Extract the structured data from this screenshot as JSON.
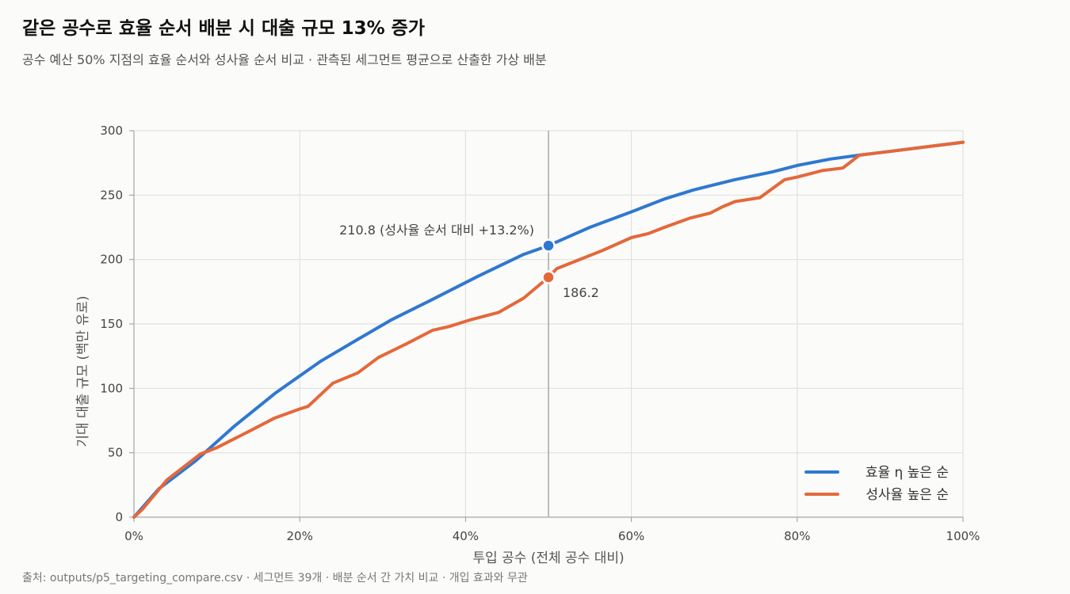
{
  "header": {
    "title": "같은 공수로 효율 순서 배분 시 대출 규모 13% 증가",
    "subtitle": "공수 예산 50% 지점의 효율 순서와 성사율 순서 비교 · 관측된 세그먼트 평균으로 산출한 가상 배분"
  },
  "footer": {
    "source": "출처: outputs/p5_targeting_compare.csv · 세그먼트 39개 · 배분 순서 간 가치 비교 · 개입 효과와 무관"
  },
  "colors": {
    "efficiency": "#2f78d0",
    "success": "#e4683a",
    "grid": "#e1e1de",
    "refline": "#b4b6b0"
  },
  "chart_data": {
    "type": "line",
    "xlabel": "투입 공수 (전체 공수 대비)",
    "ylabel": "기대 대출 규모 (백만 유로)",
    "xlim": [
      0,
      100
    ],
    "ylim": [
      0,
      300
    ],
    "xticks": [
      0,
      20,
      40,
      60,
      80,
      100
    ],
    "xtick_labels": [
      "0%",
      "20%",
      "40%",
      "60%",
      "80%",
      "100%"
    ],
    "yticks": [
      0,
      50,
      100,
      150,
      200,
      250,
      300
    ],
    "ytick_labels": [
      "0",
      "50",
      "100",
      "150",
      "200",
      "250",
      "300"
    ],
    "grid": true,
    "legend_position": "bottom-right",
    "reference_x": 50,
    "series": [
      {
        "name": "효율 η 높은 순",
        "color_key": "efficiency",
        "x": [
          0,
          3,
          7.5,
          12,
          17,
          22.5,
          27,
          31,
          36,
          41.5,
          47,
          50,
          55,
          60,
          64,
          67.5,
          72.5,
          77,
          80,
          84,
          87.5,
          90,
          95,
          100
        ],
        "y": [
          0,
          22,
          44,
          70,
          96,
          121,
          138,
          153,
          169,
          187,
          204,
          210.8,
          225,
          237,
          247,
          254,
          262,
          268,
          273,
          278,
          281,
          283,
          287,
          291
        ]
      },
      {
        "name": "성사율 높은 순",
        "color_key": "success",
        "x": [
          0,
          1,
          4,
          8,
          10,
          14,
          17,
          20,
          21,
          24,
          27,
          29.5,
          33,
          36,
          38,
          40.5,
          44,
          47,
          50,
          51,
          53,
          56.5,
          60,
          62,
          64,
          67,
          69.5,
          71,
          72.5,
          75.5,
          78.5,
          80,
          83,
          85.5,
          87.5,
          90,
          95,
          100
        ],
        "y": [
          0,
          6,
          29,
          49,
          54,
          67,
          77,
          84,
          86,
          104,
          112,
          124,
          135,
          145,
          148,
          153,
          159,
          170,
          186.2,
          193,
          198,
          207,
          217,
          220,
          225,
          232,
          236,
          241,
          245,
          248,
          262,
          264,
          269,
          271,
          281,
          283,
          287,
          291
        ]
      }
    ],
    "highlight_points": [
      {
        "series_index": 0,
        "x": 50,
        "y": 210.8,
        "label": "210.8 (성사율 순서 대비 +13.2%)"
      },
      {
        "series_index": 1,
        "x": 50,
        "y": 186.2,
        "label": "186.2"
      }
    ]
  }
}
